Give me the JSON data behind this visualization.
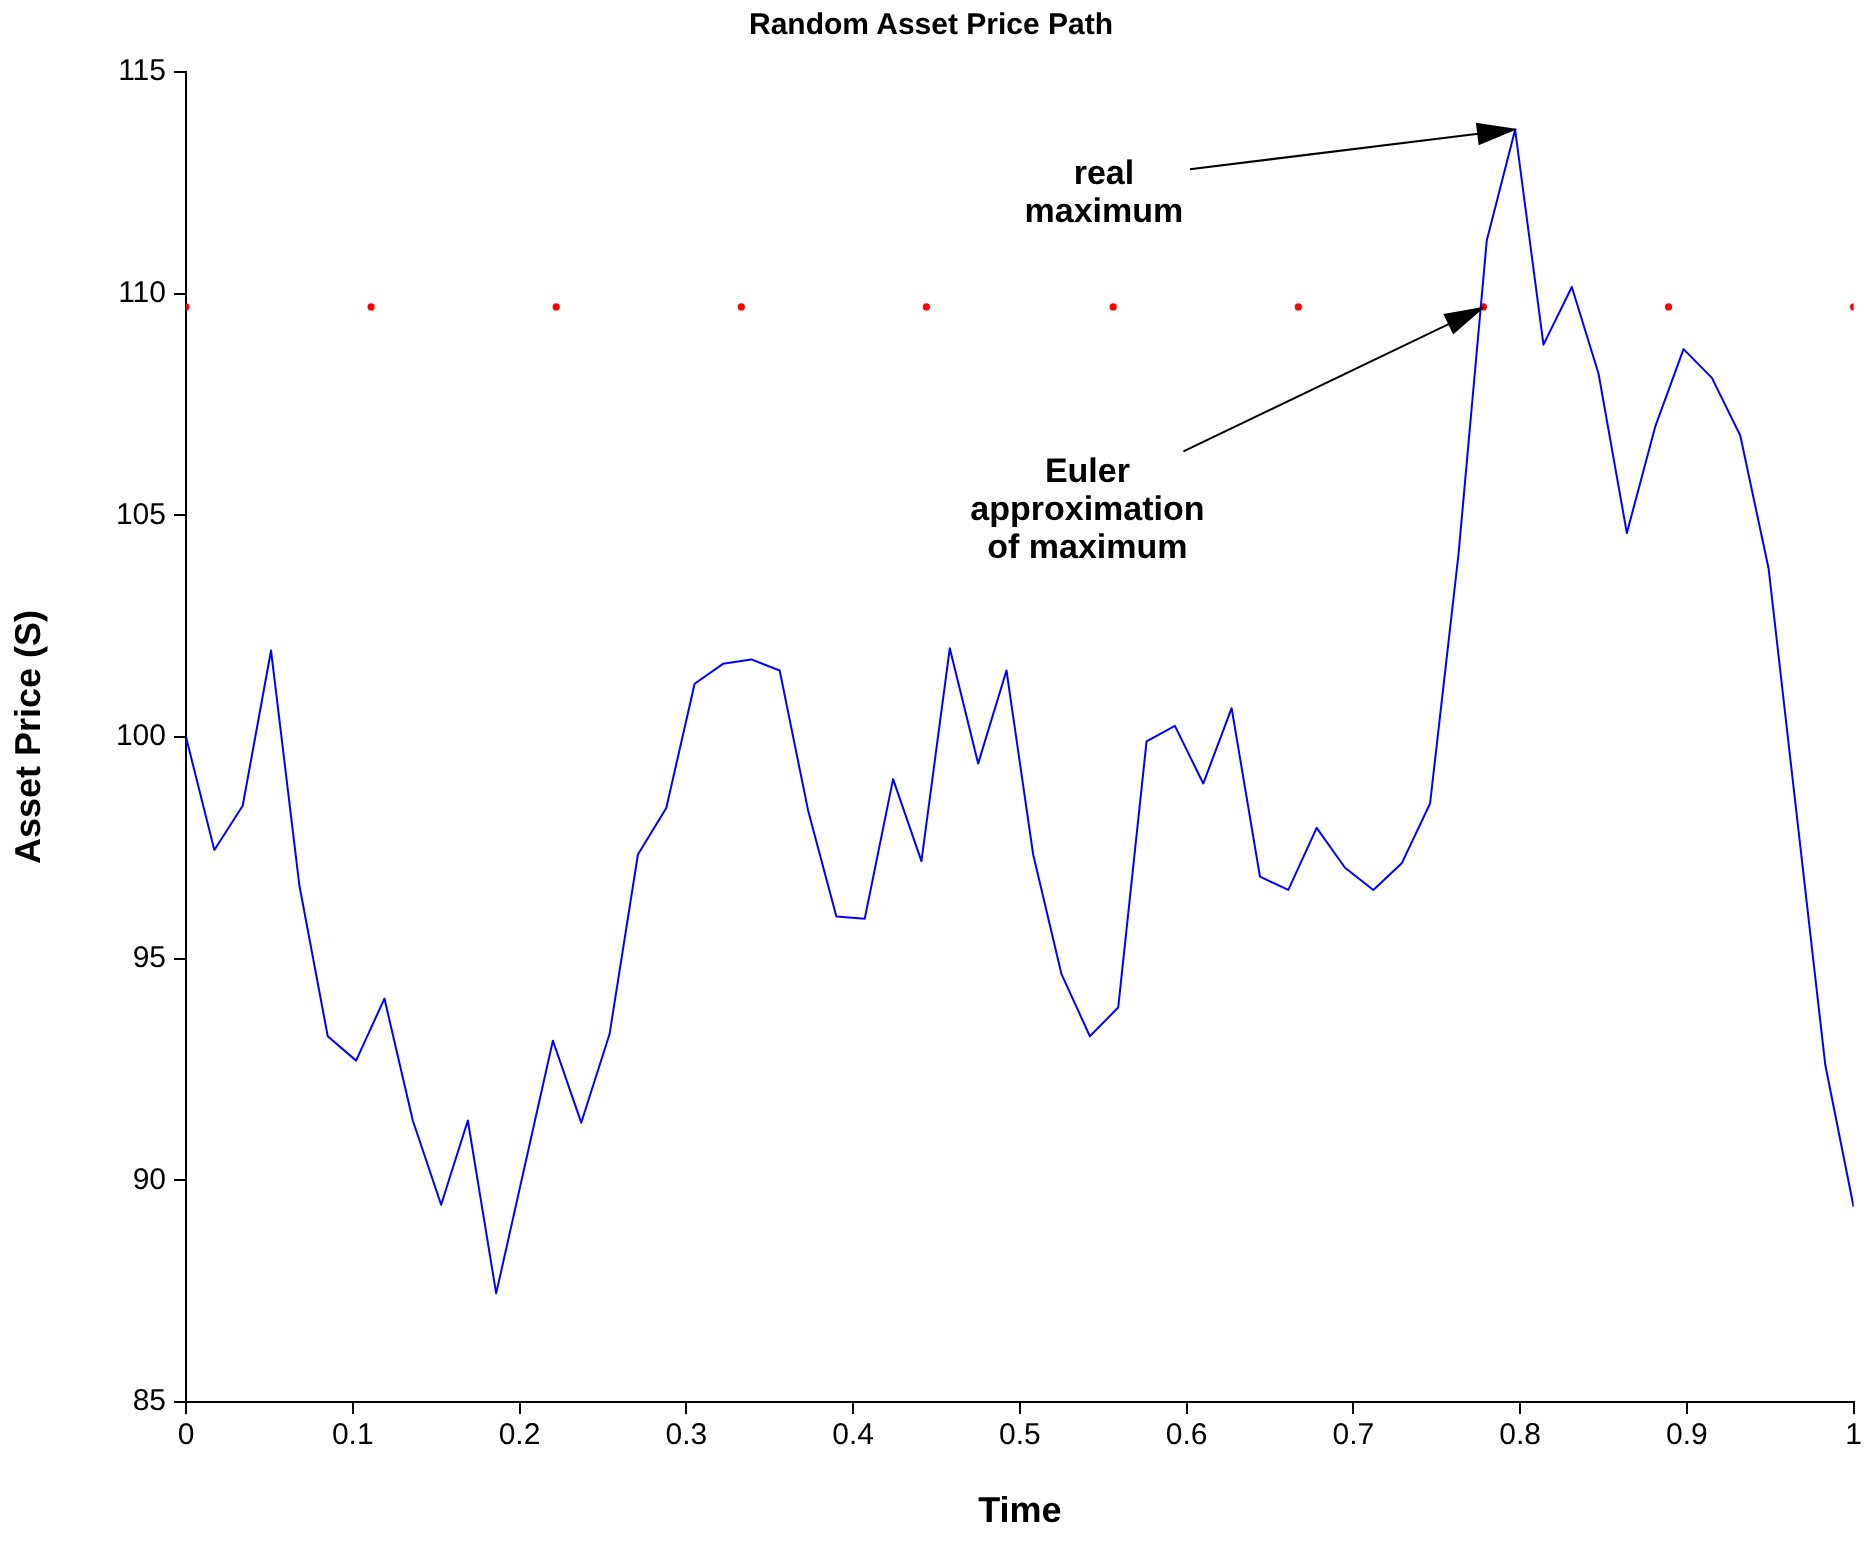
{
  "chart_data": {
    "type": "line",
    "title": "Random Asset Price Path",
    "xlabel": "Time",
    "ylabel": "Asset Price (S)",
    "xlim": [
      0,
      1
    ],
    "xticks": [
      0,
      0.1,
      0.2,
      0.3,
      0.4,
      0.5,
      0.6,
      0.7,
      0.8,
      0.9,
      1
    ],
    "ylim": [
      85,
      115
    ],
    "yticks": [
      85,
      90,
      95,
      100,
      105,
      110,
      115
    ],
    "series": [
      {
        "color": "#0000ff",
        "marker": "none",
        "line_style": "solid",
        "x": [
          0,
          0.017,
          0.034,
          0.051,
          0.068,
          0.085,
          0.102,
          0.119,
          0.136,
          0.153,
          0.169,
          0.186,
          0.203,
          0.22,
          0.237,
          0.254,
          0.271,
          0.288,
          0.305,
          0.322,
          0.339,
          0.356,
          0.373,
          0.39,
          0.407,
          0.424,
          0.441,
          0.458,
          0.475,
          0.492,
          0.508,
          0.525,
          0.542,
          0.559,
          0.576,
          0.593,
          0.61,
          0.627,
          0.644,
          0.661,
          0.678,
          0.695,
          0.712,
          0.729,
          0.746,
          0.763,
          0.78,
          0.797,
          0.814,
          0.831,
          0.847,
          0.864,
          0.881,
          0.898,
          0.915,
          0.932,
          0.949,
          0.966,
          0.983,
          1
        ],
        "values": [
          100.0,
          97.45,
          98.45,
          101.95,
          96.65,
          93.25,
          92.7,
          94.1,
          91.35,
          89.45,
          91.35,
          87.45,
          90.3,
          93.15,
          91.3,
          93.3,
          97.35,
          98.4,
          101.2,
          101.65,
          101.75,
          101.5,
          98.35,
          95.95,
          95.9,
          99.05,
          97.2,
          102.0,
          99.4,
          101.5,
          97.35,
          94.65,
          93.25,
          93.9,
          99.9,
          100.25,
          98.95,
          100.65,
          96.85,
          96.55,
          97.95,
          97.05,
          96.55,
          97.15,
          98.5,
          104.1,
          111.2,
          113.7,
          108.85,
          110.15,
          108.2,
          104.6,
          107.0,
          108.75,
          108.1,
          106.8,
          103.8,
          98.2,
          92.6,
          89.4
        ]
      },
      {
        "type": "scatter",
        "color": "#ff0000",
        "marker": "circle",
        "x": [
          0,
          0.111,
          0.222,
          0.333,
          0.444,
          0.556,
          0.667,
          0.778,
          0.889,
          1
        ],
        "values": [
          109.7,
          109.7,
          109.7,
          109.7,
          109.7,
          109.7,
          109.7,
          109.7,
          109.7,
          109.7
        ]
      }
    ],
    "annotations": [
      "real maximum",
      "Euler approximation of maximum"
    ]
  }
}
